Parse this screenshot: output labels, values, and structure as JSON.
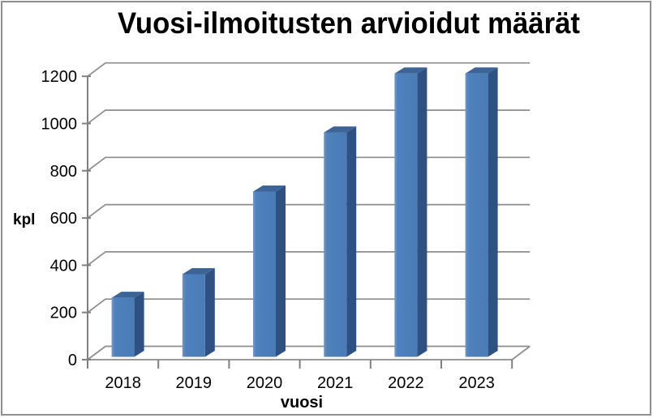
{
  "window": {
    "background": "#FFFFFF",
    "border_color": "#8F8F8F"
  },
  "chart_data": {
    "type": "bar",
    "style": "3d-column",
    "title": "Vuosi-ilmoitusten arvioidut määrät",
    "xlabel": "vuosi",
    "ylabel": "kpl",
    "categories": [
      "2018",
      "2019",
      "2020",
      "2021",
      "2022",
      "2023"
    ],
    "values": [
      250,
      350,
      700,
      950,
      1200,
      1200
    ],
    "series": [
      {
        "name": "Vuosi-ilmoitusten arvioidut määrät",
        "values": [
          250,
          350,
          700,
          950,
          1200,
          1200
        ]
      }
    ],
    "ylim": [
      0,
      1200
    ],
    "ytick_step": 200,
    "yticks": [
      0,
      200,
      400,
      600,
      800,
      1000,
      1200
    ],
    "grid": true,
    "legend": false,
    "colors": {
      "bar_front": "#4E81BD",
      "bar_front_highlight": "#6F99CD",
      "bar_front_shade": "#4A7BB5",
      "bar_side": "#2F5181",
      "bar_top": "#3D6496",
      "gridline": "#8C8C8C",
      "axis": "#7F7F7F",
      "text": "#000000"
    }
  }
}
